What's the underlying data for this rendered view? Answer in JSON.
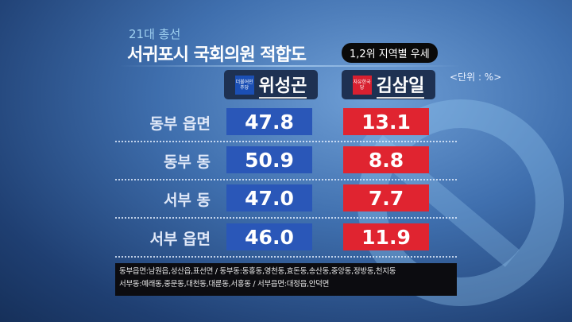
{
  "subtitle": "21대 총선",
  "title": "서귀포시 국회의원 적합도",
  "badge": "1,2위 지역별 우세",
  "unit": "<단위 : %>",
  "chart_data": {
    "type": "table",
    "unit": "%",
    "columns": [
      {
        "name": "위성곤",
        "party_logo": "더불어민주당",
        "color": "#2a57b8"
      },
      {
        "name": "김삼일",
        "party_logo": "자유한국당",
        "color": "#e02430"
      }
    ],
    "rows": [
      {
        "label": "동부 읍면",
        "values": [
          "47.8",
          "13.1"
        ]
      },
      {
        "label": "동부 동",
        "values": [
          "50.9",
          "8.8"
        ]
      },
      {
        "label": "서부 동",
        "values": [
          "47.0",
          "7.7"
        ]
      },
      {
        "label": "서부 읍면",
        "values": [
          "46.0",
          "11.9"
        ]
      }
    ]
  },
  "footnote": [
    "동부읍면:남원읍,성산읍,표선면 / 동부동:동홍동,영천동,효돈동,송산동,중앙동,정방동,천지동",
    "서부동:예래동,중문동,대천동,대륜동,서홍동 / 서부읍면:대정읍,안덕면"
  ]
}
